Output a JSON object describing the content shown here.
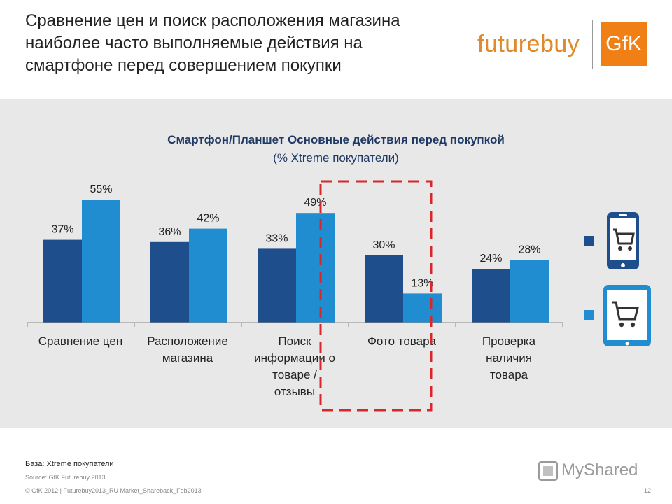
{
  "header": {
    "title": "Сравнение цен и поиск расположения магазина наиболее часто выполняемые действия на смартфоне перед совершением покупки",
    "logo_text": "futurebuy",
    "logo_brand": "GfK"
  },
  "chart_data": {
    "type": "bar",
    "title": "Смартфон/Планшет Основные действия перед покупкой",
    "subtitle": "(% Xtreme покупатели)",
    "categories": [
      "Сравнение цен",
      "Расположение магазина",
      "Поиск информации о товаре / отзывы",
      "Фото товара",
      "Проверка наличия товара"
    ],
    "category_lines": [
      [
        "Сравнение цен"
      ],
      [
        "Расположение",
        "магазина"
      ],
      [
        "Поиск",
        "информации о",
        "товаре /",
        "отзывы"
      ],
      [
        "Фото товара"
      ],
      [
        "Проверка",
        "наличия",
        "товара"
      ]
    ],
    "series": [
      {
        "legend_icon": "smartphone-icon",
        "color": "#1f4e8c",
        "values": [
          37,
          36,
          33,
          30,
          24
        ],
        "labels": [
          "37%",
          "36%",
          "33%",
          "30%",
          "24%"
        ]
      },
      {
        "legend_icon": "tablet-icon",
        "color": "#1f8dd0",
        "values": [
          55,
          42,
          49,
          13,
          28
        ],
        "labels": [
          "55%",
          "42%",
          "49%",
          "13%",
          "28%"
        ]
      }
    ],
    "ylim": [
      0,
      60
    ],
    "grid": false,
    "highlighted_category": "Фото товара",
    "highlight_color": "#d9262b",
    "legend_position": "right"
  },
  "footer": {
    "base": "База: Xtreme покупатели",
    "source": "Source: GfK Futurebuy 2013",
    "copyright": "© GfK 2012 | Futurebuy2013_RU Market_Shareback_Feb2013",
    "page": "12",
    "watermark": "MyShared"
  }
}
